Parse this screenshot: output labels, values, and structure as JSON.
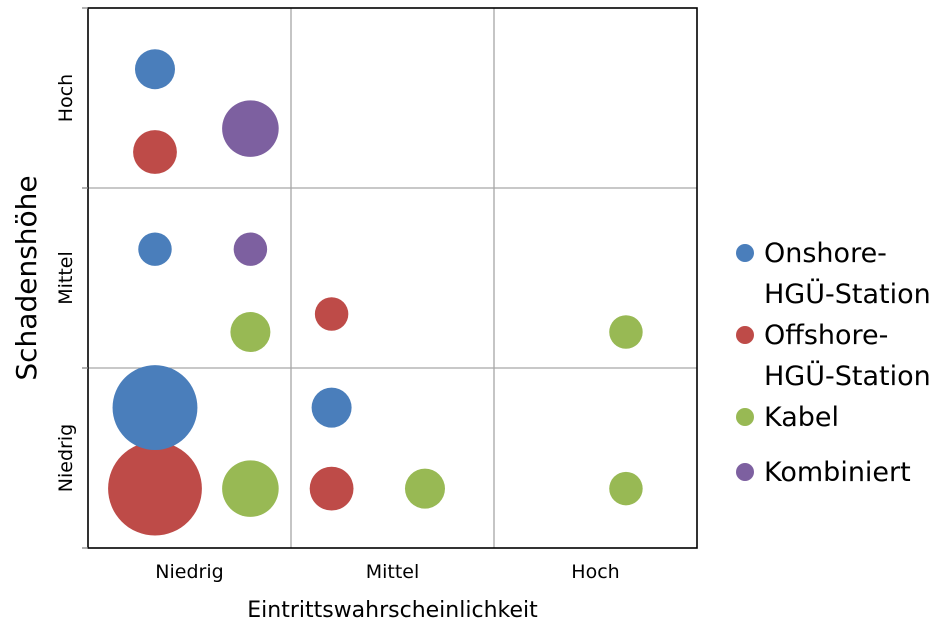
{
  "chart_data": {
    "type": "bubble",
    "xlabel": "Eintrittswahrscheinlichkeit",
    "ylabel": "Schadenshöhe",
    "x_categories": [
      "Niedrig",
      "Mittel",
      "Hoch"
    ],
    "y_categories": [
      "Niedrig",
      "Mittel",
      "Hoch"
    ],
    "xlim": [
      0,
      3
    ],
    "ylim": [
      0,
      3
    ],
    "grid": true,
    "legend_position": "right",
    "series": [
      {
        "name": "Onshore-HGÜ-Station",
        "legend_lines": [
          "Onshore-",
          "HGÜ-Station"
        ],
        "color": "#4a7ebb",
        "points": [
          {
            "x": 0.33,
            "y": 2.66,
            "size": 1.0
          },
          {
            "x": 0.33,
            "y": 1.66,
            "size": 0.7
          },
          {
            "x": 0.33,
            "y": 0.78,
            "size": 4.5
          },
          {
            "x": 1.2,
            "y": 0.78,
            "size": 1.0
          }
        ]
      },
      {
        "name": "Offshore-HGÜ-Station",
        "legend_lines": [
          "Offshore-",
          "HGÜ-Station"
        ],
        "color": "#be4b48",
        "points": [
          {
            "x": 0.33,
            "y": 2.2,
            "size": 1.2
          },
          {
            "x": 1.2,
            "y": 1.3,
            "size": 0.7
          },
          {
            "x": 1.2,
            "y": 0.33,
            "size": 1.2
          },
          {
            "x": 0.33,
            "y": 0.33,
            "size": 5.5
          }
        ]
      },
      {
        "name": "Kabel",
        "legend_lines": [
          "Kabel"
        ],
        "color": "#98b954",
        "points": [
          {
            "x": 0.8,
            "y": 1.2,
            "size": 1.0
          },
          {
            "x": 2.65,
            "y": 1.2,
            "size": 0.7
          },
          {
            "x": 0.8,
            "y": 0.33,
            "size": 2.0
          },
          {
            "x": 1.66,
            "y": 0.33,
            "size": 1.0
          },
          {
            "x": 2.65,
            "y": 0.33,
            "size": 0.7
          }
        ]
      },
      {
        "name": "Kombiniert",
        "legend_lines": [
          "Kombiniert"
        ],
        "color": "#7d60a0",
        "points": [
          {
            "x": 0.8,
            "y": 2.33,
            "size": 2.0
          },
          {
            "x": 0.8,
            "y": 1.66,
            "size": 0.7
          }
        ]
      }
    ]
  }
}
